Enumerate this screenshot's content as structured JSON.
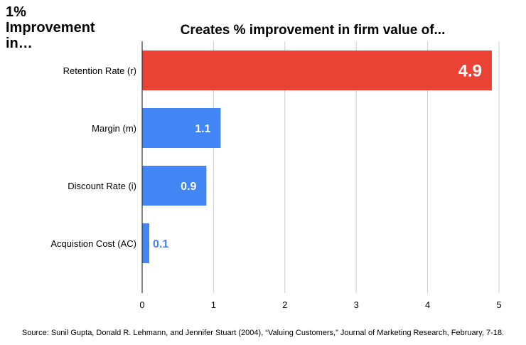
{
  "side_label": "1%\nImprovement\nin…",
  "source": "Source: Sunil Gupta, Donald R. Lehmann, and Jennifer Stuart (2004), “Valuing Customers,” Journal of Marketing Research, February, 7-18.",
  "colors": {
    "highlight": "#EA4335",
    "bar": "#4285F4",
    "grid": "#cccccc",
    "axis": "#333333"
  },
  "chart_data": {
    "type": "bar",
    "orientation": "horizontal",
    "title": "Creates % improvement in firm value of...",
    "categories": [
      "Retention Rate (r)",
      "Margin (m)",
      "Discount Rate (i)",
      "Acquistion Cost (AC)"
    ],
    "values": [
      4.9,
      1.1,
      0.9,
      0.1
    ],
    "data_labels": [
      "4.9",
      "1.1",
      "0.9",
      "0.1"
    ],
    "xlim": [
      0,
      5
    ],
    "xticks": [
      "0",
      "1",
      "2",
      "3",
      "4",
      "5"
    ],
    "grid": true,
    "legend": "none"
  }
}
